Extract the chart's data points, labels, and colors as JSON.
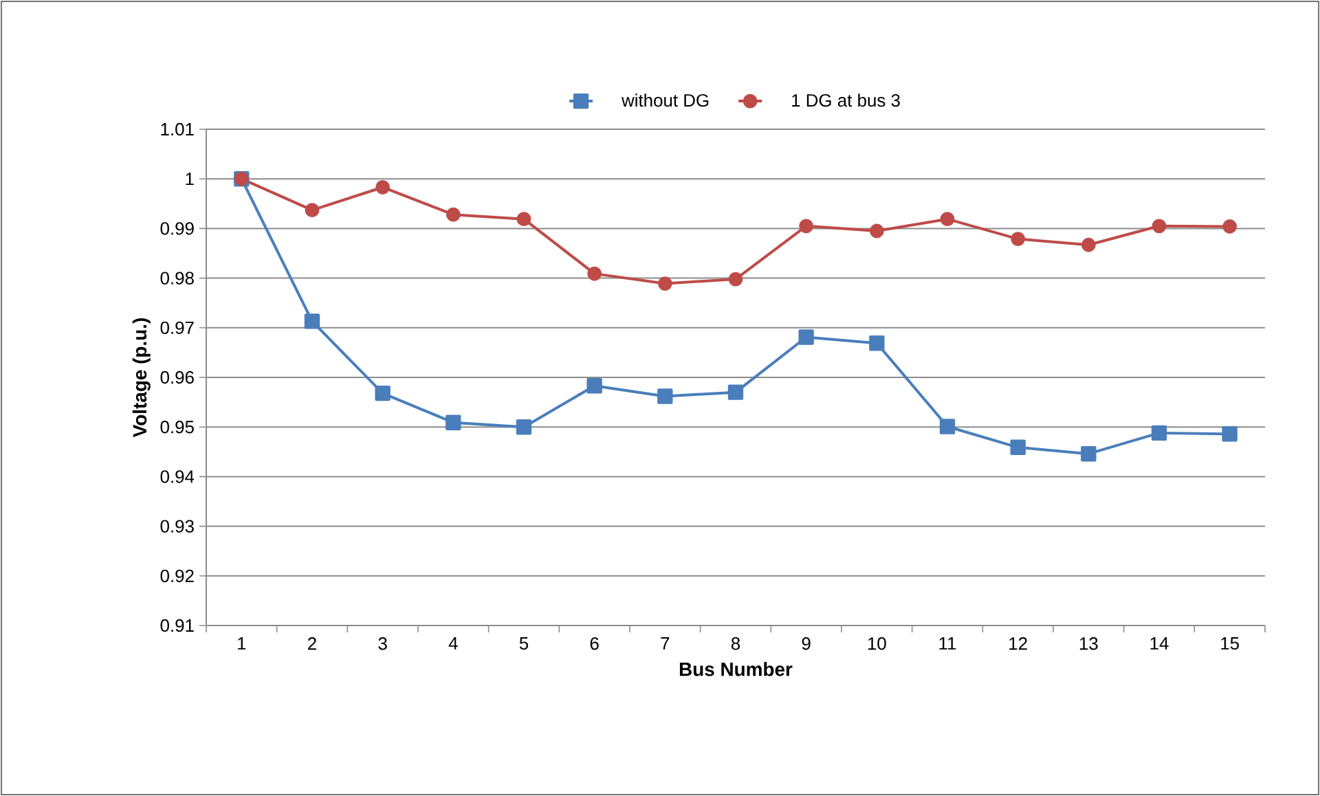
{
  "chart_data": {
    "type": "line",
    "xlabel": "Bus Number",
    "ylabel": "Voltage (p.u.)",
    "categories": [
      "1",
      "2",
      "3",
      "4",
      "5",
      "6",
      "7",
      "8",
      "9",
      "10",
      "11",
      "12",
      "13",
      "14",
      "15"
    ],
    "series": [
      {
        "name": "without DG",
        "color": "#4a7ebb",
        "marker": "square",
        "values": [
          1.0,
          0.9713,
          0.9568,
          0.9509,
          0.95,
          0.9583,
          0.9562,
          0.957,
          0.9681,
          0.9669,
          0.9501,
          0.9459,
          0.9446,
          0.9488,
          0.9486
        ]
      },
      {
        "name": "1 DG at bus 3",
        "color": "#be4b48",
        "marker": "circle",
        "values": [
          1.0,
          0.9937,
          0.9983,
          0.9928,
          0.9919,
          0.9809,
          0.9789,
          0.9798,
          0.9905,
          0.9895,
          0.9919,
          0.9879,
          0.9867,
          0.9905,
          0.9904
        ]
      }
    ],
    "ylim": [
      0.91,
      1.01
    ],
    "yticks": [
      0.91,
      0.92,
      0.93,
      0.94,
      0.95,
      0.96,
      0.97,
      0.98,
      0.99,
      1,
      1.01
    ],
    "grid": "y",
    "legend": "top"
  }
}
